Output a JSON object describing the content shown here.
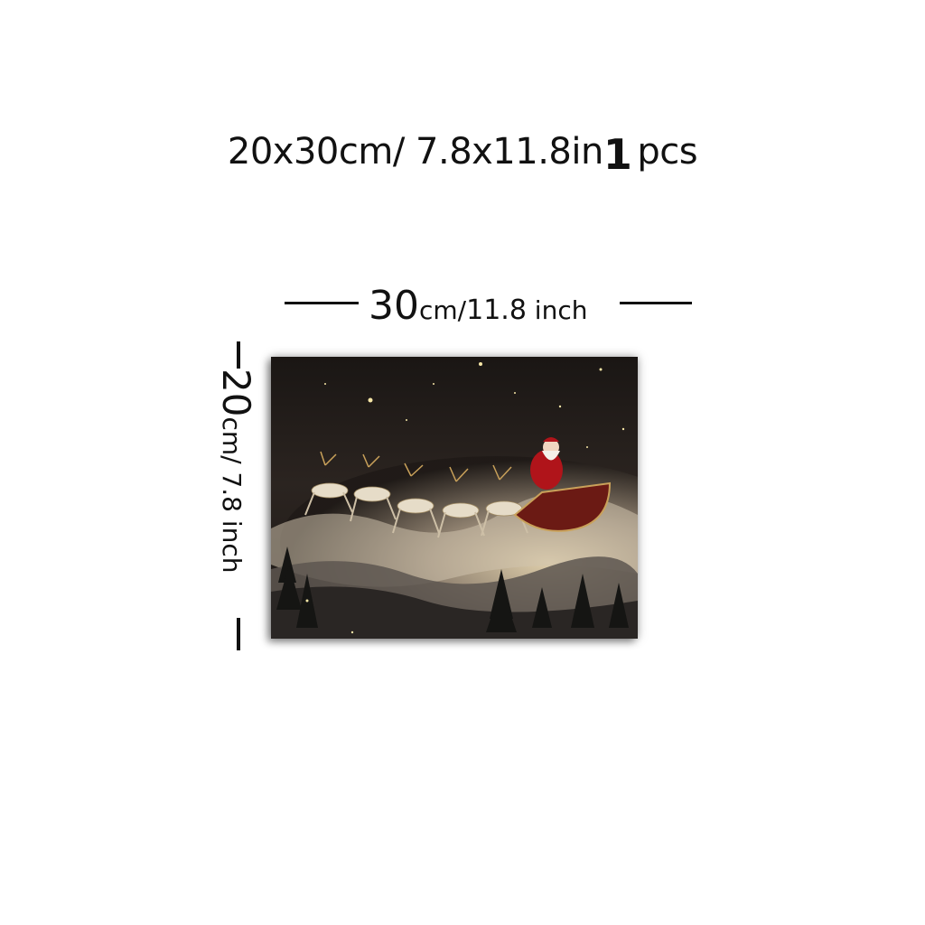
{
  "header": {
    "size_text": "20x30cm/ 7.8x11.8in",
    "quantity": "1",
    "unit": "pcs"
  },
  "width_dimension": {
    "value": "30",
    "unit_cm": "cm/",
    "value_in": "11.8",
    "unit_in": " inch"
  },
  "height_dimension": {
    "value": "20",
    "unit_text": "cm/ 7.8 inch"
  },
  "artwork": {
    "subject": "santa-sleigh-reindeer-night-sky",
    "colors": {
      "sky": "#1f1a17",
      "cloud": "#cfc2ad",
      "santa_suit": "#b0141a",
      "sleigh": "#6b1a14",
      "reindeer": "#e6dcc8",
      "star": "#f6e6a6"
    }
  }
}
